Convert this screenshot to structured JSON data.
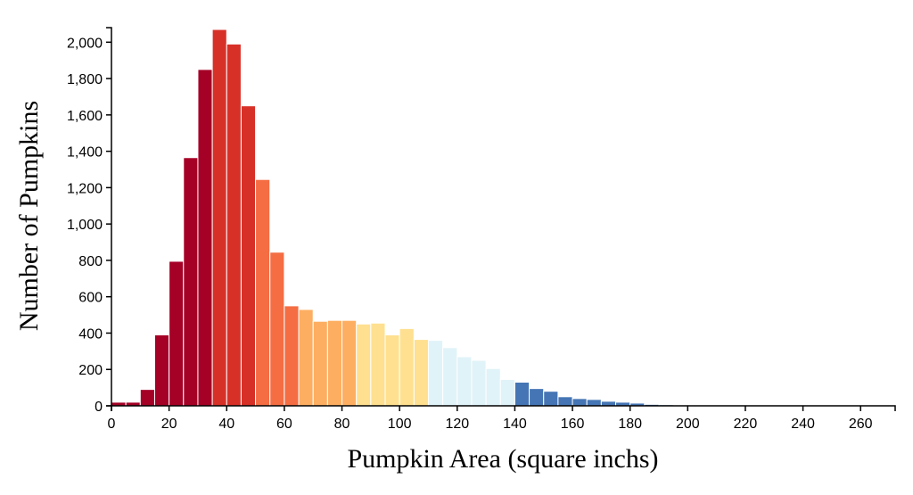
{
  "chart_data": {
    "type": "bar",
    "title": "",
    "xlabel": "Pumpkin Area (square inchs)",
    "ylabel": "Number of Pumpkins",
    "xlim": [
      0,
      272
    ],
    "ylim": [
      0,
      2080
    ],
    "bin_width": 5,
    "x_ticks": [
      {
        "value": 0,
        "label": "0"
      },
      {
        "value": 20,
        "label": "20"
      },
      {
        "value": 40,
        "label": "40"
      },
      {
        "value": 60,
        "label": "60"
      },
      {
        "value": 80,
        "label": "80"
      },
      {
        "value": 100,
        "label": "100"
      },
      {
        "value": 120,
        "label": "120"
      },
      {
        "value": 140,
        "label": "140"
      },
      {
        "value": 160,
        "label": "160"
      },
      {
        "value": 180,
        "label": "180"
      },
      {
        "value": 200,
        "label": "200"
      },
      {
        "value": 220,
        "label": "220"
      },
      {
        "value": 240,
        "label": "240"
      },
      {
        "value": 260,
        "label": "260"
      }
    ],
    "y_ticks": [
      {
        "value": 0,
        "label": "0"
      },
      {
        "value": 200,
        "label": "200"
      },
      {
        "value": 400,
        "label": "400"
      },
      {
        "value": 600,
        "label": "600"
      },
      {
        "value": 800,
        "label": "800"
      },
      {
        "value": 1000,
        "label": "1,000"
      },
      {
        "value": 1200,
        "label": "1,200"
      },
      {
        "value": 1400,
        "label": "1,400"
      },
      {
        "value": 1600,
        "label": "1,600"
      },
      {
        "value": 1800,
        "label": "1,800"
      },
      {
        "value": 2000,
        "label": "2,000"
      }
    ],
    "bins": [
      {
        "x0": 0,
        "value": 20,
        "color": "#a50026"
      },
      {
        "x0": 5,
        "value": 20,
        "color": "#a50026"
      },
      {
        "x0": 10,
        "value": 90,
        "color": "#a50026"
      },
      {
        "x0": 15,
        "value": 390,
        "color": "#a50026"
      },
      {
        "x0": 20,
        "value": 795,
        "color": "#a50026"
      },
      {
        "x0": 25,
        "value": 1365,
        "color": "#a50026"
      },
      {
        "x0": 30,
        "value": 1850,
        "color": "#a50026"
      },
      {
        "x0": 35,
        "value": 2070,
        "color": "#d73027"
      },
      {
        "x0": 40,
        "value": 1990,
        "color": "#d73027"
      },
      {
        "x0": 45,
        "value": 1650,
        "color": "#d73027"
      },
      {
        "x0": 50,
        "value": 1245,
        "color": "#f46d43"
      },
      {
        "x0": 55,
        "value": 845,
        "color": "#f46d43"
      },
      {
        "x0": 60,
        "value": 550,
        "color": "#f46d43"
      },
      {
        "x0": 65,
        "value": 530,
        "color": "#fdae61"
      },
      {
        "x0": 70,
        "value": 465,
        "color": "#fdae61"
      },
      {
        "x0": 75,
        "value": 470,
        "color": "#fdae61"
      },
      {
        "x0": 80,
        "value": 470,
        "color": "#fdae61"
      },
      {
        "x0": 85,
        "value": 450,
        "color": "#fee090"
      },
      {
        "x0": 90,
        "value": 455,
        "color": "#fee090"
      },
      {
        "x0": 95,
        "value": 390,
        "color": "#fee090"
      },
      {
        "x0": 100,
        "value": 425,
        "color": "#fee090"
      },
      {
        "x0": 105,
        "value": 365,
        "color": "#fee090"
      },
      {
        "x0": 110,
        "value": 360,
        "color": "#e0f3f8"
      },
      {
        "x0": 115,
        "value": 320,
        "color": "#e0f3f8"
      },
      {
        "x0": 120,
        "value": 270,
        "color": "#e0f3f8"
      },
      {
        "x0": 125,
        "value": 250,
        "color": "#e0f3f8"
      },
      {
        "x0": 130,
        "value": 205,
        "color": "#e0f3f8"
      },
      {
        "x0": 135,
        "value": 145,
        "color": "#e0f3f8"
      },
      {
        "x0": 140,
        "value": 130,
        "color": "#4575b4"
      },
      {
        "x0": 145,
        "value": 95,
        "color": "#4575b4"
      },
      {
        "x0": 150,
        "value": 80,
        "color": "#4575b4"
      },
      {
        "x0": 155,
        "value": 50,
        "color": "#4575b4"
      },
      {
        "x0": 160,
        "value": 40,
        "color": "#4575b4"
      },
      {
        "x0": 165,
        "value": 35,
        "color": "#4575b4"
      },
      {
        "x0": 170,
        "value": 25,
        "color": "#4575b4"
      },
      {
        "x0": 175,
        "value": 20,
        "color": "#4575b4"
      },
      {
        "x0": 180,
        "value": 15,
        "color": "#4575b4"
      },
      {
        "x0": 185,
        "value": 8,
        "color": "#4575b4"
      },
      {
        "x0": 190,
        "value": 6,
        "color": "#4575b4"
      },
      {
        "x0": 195,
        "value": 4,
        "color": "#4575b4"
      },
      {
        "x0": 200,
        "value": 3,
        "color": "#4575b4"
      },
      {
        "x0": 205,
        "value": 2,
        "color": "#4575b4"
      },
      {
        "x0": 210,
        "value": 2,
        "color": "#4575b4"
      },
      {
        "x0": 215,
        "value": 1,
        "color": "#4575b4"
      },
      {
        "x0": 220,
        "value": 1,
        "color": "#4575b4"
      },
      {
        "x0": 225,
        "value": 1,
        "color": "#4575b4"
      },
      {
        "x0": 230,
        "value": 1,
        "color": "#4575b4"
      },
      {
        "x0": 235,
        "value": 1,
        "color": "#4575b4"
      },
      {
        "x0": 240,
        "value": 1,
        "color": "#4575b4"
      },
      {
        "x0": 245,
        "value": 1,
        "color": "#4575b4"
      },
      {
        "x0": 250,
        "value": 1,
        "color": "#4575b4"
      },
      {
        "x0": 255,
        "value": 1,
        "color": "#4575b4"
      },
      {
        "x0": 260,
        "value": 1,
        "color": "#4575b4"
      },
      {
        "x0": 265,
        "value": 1,
        "color": "#4575b4"
      }
    ]
  }
}
